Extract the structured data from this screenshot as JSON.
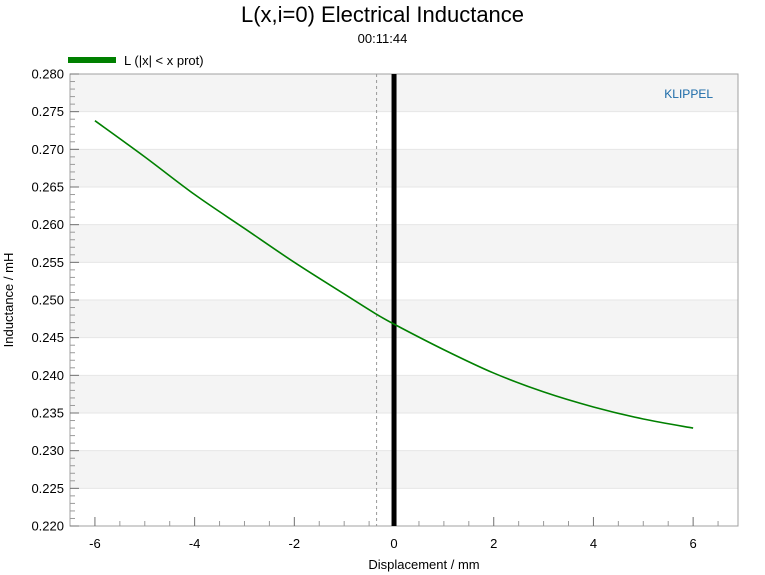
{
  "chart_data": {
    "type": "line",
    "title": "L(x,i=0) Electrical Inductance",
    "subtitle": "00:11:44",
    "xlabel": "Displacement / mm",
    "ylabel": "Inductance / mH",
    "xlim": [
      -6.5,
      6.9
    ],
    "ylim": [
      0.22,
      0.28
    ],
    "xticks": [
      "-6",
      "-4",
      "-2",
      "0",
      "2",
      "4",
      "6"
    ],
    "yticks": [
      "0.220",
      "0.225",
      "0.230",
      "0.235",
      "0.240",
      "0.245",
      "0.250",
      "0.255",
      "0.260",
      "0.265",
      "0.270",
      "0.275",
      "0.280"
    ],
    "legend_position": "top-left",
    "watermark": "KLIPPEL",
    "series": [
      {
        "name": "L (|x| < x prot)",
        "color": "#008000",
        "x": [
          -6,
          -5,
          -4,
          -3,
          -2,
          -1,
          -0.4,
          0,
          1,
          2,
          3,
          4,
          5,
          6
        ],
        "y": [
          0.2738,
          0.269,
          0.264,
          0.2595,
          0.255,
          0.2508,
          0.2483,
          0.2468,
          0.2434,
          0.2403,
          0.2378,
          0.2358,
          0.2342,
          0.233
        ]
      }
    ],
    "vertical_lines": [
      {
        "x": 0,
        "style": "solid",
        "color": "#000000"
      },
      {
        "x": -0.35,
        "style": "dashed",
        "color": "#999999"
      }
    ],
    "grid": "horizontal-bands"
  }
}
